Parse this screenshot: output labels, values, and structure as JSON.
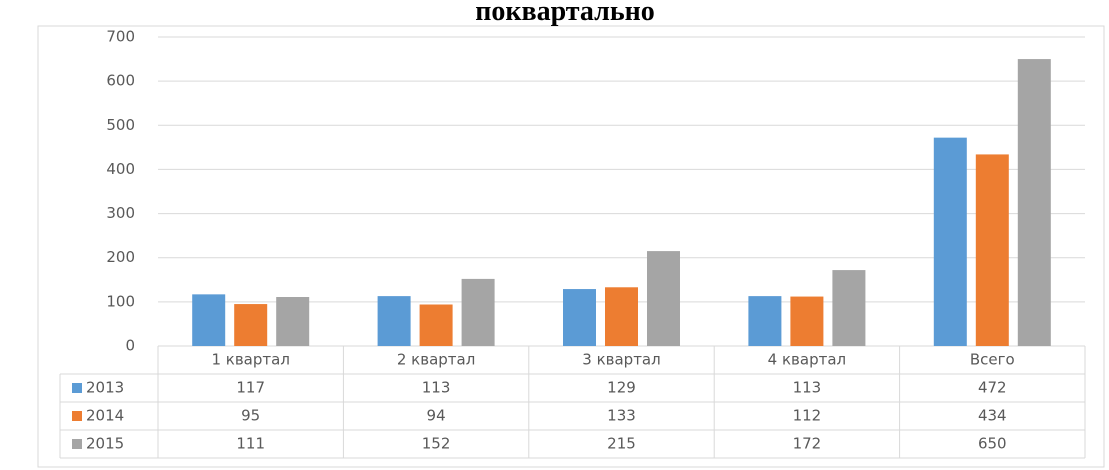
{
  "chart_data": {
    "type": "bar",
    "title": "поквартально",
    "categories": [
      "1 квартал",
      "2 квартал",
      "3 квартал",
      "4 квартал",
      "Всего"
    ],
    "series": [
      {
        "name": "2013",
        "color": "#5b9bd5",
        "values": [
          117,
          113,
          129,
          113,
          472
        ]
      },
      {
        "name": "2014",
        "color": "#ed7d31",
        "values": [
          95,
          94,
          133,
          112,
          434
        ]
      },
      {
        "name": "2015",
        "color": "#a5a5a5",
        "values": [
          111,
          152,
          215,
          172,
          650
        ]
      }
    ],
    "ylim": [
      0,
      700
    ],
    "yticks": [
      0,
      100,
      200,
      300,
      400,
      500,
      600,
      700
    ],
    "grid": true,
    "data_table": true
  }
}
